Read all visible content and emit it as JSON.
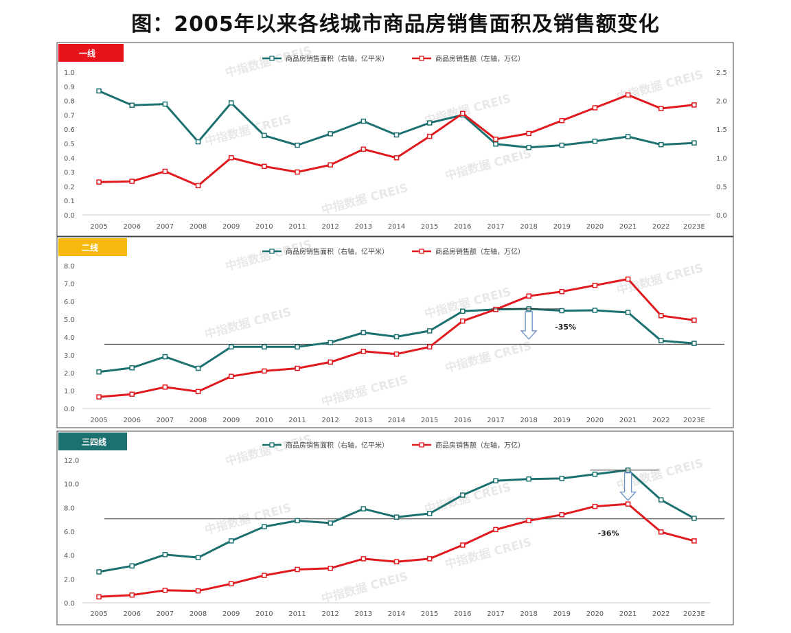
{
  "title": "图：2005年以来各线城市商品房销售面积及销售额变化",
  "watermark": "中指数据 CREIS",
  "colors": {
    "area": "#1c7170",
    "sales": "#e0191e"
  },
  "legend": {
    "area": "商品房销售面积（右轴，亿平米）",
    "sales": "商品房销售额（左轴，万亿）"
  },
  "chart_data": [
    {
      "type": "line",
      "panel_label": "一线",
      "badge_color": "#e8141b",
      "badge_text_color": "#ffffff",
      "categories": [
        "2005",
        "2006",
        "2007",
        "2008",
        "2009",
        "2010",
        "2011",
        "2012",
        "2013",
        "2014",
        "2015",
        "2016",
        "2017",
        "2018",
        "2019",
        "2020",
        "2021",
        "2022",
        "2023E"
      ],
      "series": [
        {
          "name": "商品房销售面积（右轴，亿平米）",
          "axis": "right",
          "values": [
            2.17,
            1.92,
            1.94,
            1.28,
            1.96,
            1.39,
            1.22,
            1.42,
            1.64,
            1.4,
            1.61,
            1.75,
            1.24,
            1.18,
            1.22,
            1.29,
            1.37,
            1.23,
            1.26
          ]
        },
        {
          "name": "商品房销售额（左轴，万亿）",
          "axis": "left",
          "values": [
            0.23,
            0.235,
            0.305,
            0.205,
            0.4,
            0.34,
            0.3,
            0.35,
            0.46,
            0.4,
            0.55,
            0.71,
            0.53,
            0.57,
            0.66,
            0.75,
            0.84,
            0.745,
            0.77
          ]
        }
      ],
      "left_axis": {
        "ylim": [
          0,
          1.0
        ],
        "ticks": [
          "0.0",
          "0.1",
          "0.2",
          "0.3",
          "0.4",
          "0.5",
          "0.6",
          "0.7",
          "0.8",
          "0.9",
          "1.0"
        ]
      },
      "right_axis": {
        "ylim": [
          0,
          2.5
        ],
        "ticks": [
          "0.0",
          "0.5",
          "1.0",
          "1.5",
          "2.0",
          "2.5"
        ]
      },
      "annotation": null
    },
    {
      "type": "line",
      "panel_label": "二线",
      "badge_color": "#f7b80f",
      "badge_text_color": "#ffffff",
      "categories": [
        "2005",
        "2006",
        "2007",
        "2008",
        "2009",
        "2010",
        "2011",
        "2012",
        "2013",
        "2014",
        "2015",
        "2016",
        "2017",
        "2018",
        "2019",
        "2020",
        "2021",
        "2022",
        "2023E"
      ],
      "series": [
        {
          "name": "商品房销售面积（右轴，亿平米）",
          "axis": "right",
          "values": [
            2.05,
            2.28,
            2.9,
            2.25,
            3.45,
            3.45,
            3.45,
            3.7,
            4.25,
            4.02,
            4.35,
            5.45,
            5.55,
            5.58,
            5.48,
            5.5,
            5.38,
            3.8,
            3.65
          ]
        },
        {
          "name": "商品房销售额（左轴，万亿）",
          "axis": "left",
          "values": [
            0.65,
            0.8,
            1.2,
            0.95,
            1.8,
            2.1,
            2.25,
            2.6,
            3.2,
            3.05,
            3.45,
            4.9,
            5.55,
            6.3,
            6.55,
            6.9,
            7.25,
            5.2,
            4.95
          ]
        }
      ],
      "left_axis": {
        "ylim": [
          0,
          8
        ],
        "ticks": [
          "0.0",
          "1.0",
          "2.0",
          "3.0",
          "4.0",
          "5.0",
          "6.0",
          "7.0",
          "8.0"
        ]
      },
      "right_axis": null,
      "reference_line": 3.6,
      "annotation": {
        "text": "-35%",
        "category": "2018"
      }
    },
    {
      "type": "line",
      "panel_label": "三四线",
      "badge_color": "#1c7170",
      "badge_text_color": "#ffffff",
      "categories": [
        "2005",
        "2006",
        "2007",
        "2008",
        "2009",
        "2010",
        "2011",
        "2012",
        "2013",
        "2014",
        "2015",
        "2016",
        "2017",
        "2018",
        "2019",
        "2020",
        "2021",
        "2022",
        "2023E"
      ],
      "series": [
        {
          "name": "商品房销售面积（右轴，亿平米）",
          "axis": "right",
          "values": [
            2.6,
            3.1,
            4.05,
            3.8,
            5.2,
            6.4,
            6.9,
            6.7,
            7.9,
            7.2,
            7.5,
            9.05,
            10.25,
            10.4,
            10.45,
            10.8,
            11.15,
            8.65,
            7.1
          ]
        },
        {
          "name": "商品房销售额（左轴，万亿）",
          "axis": "left",
          "values": [
            0.5,
            0.65,
            1.05,
            1.0,
            1.6,
            2.3,
            2.8,
            2.9,
            3.7,
            3.45,
            3.7,
            4.85,
            6.15,
            6.9,
            7.4,
            8.1,
            8.3,
            5.95,
            5.2
          ]
        }
      ],
      "left_axis": {
        "ylim": [
          0,
          12
        ],
        "ticks": [
          "0.0",
          "2.0",
          "4.0",
          "6.0",
          "8.0",
          "10.0",
          "12.0"
        ]
      },
      "right_axis": null,
      "reference_line": 7.05,
      "annotation": {
        "text": "-36%",
        "category": "2021"
      }
    }
  ]
}
